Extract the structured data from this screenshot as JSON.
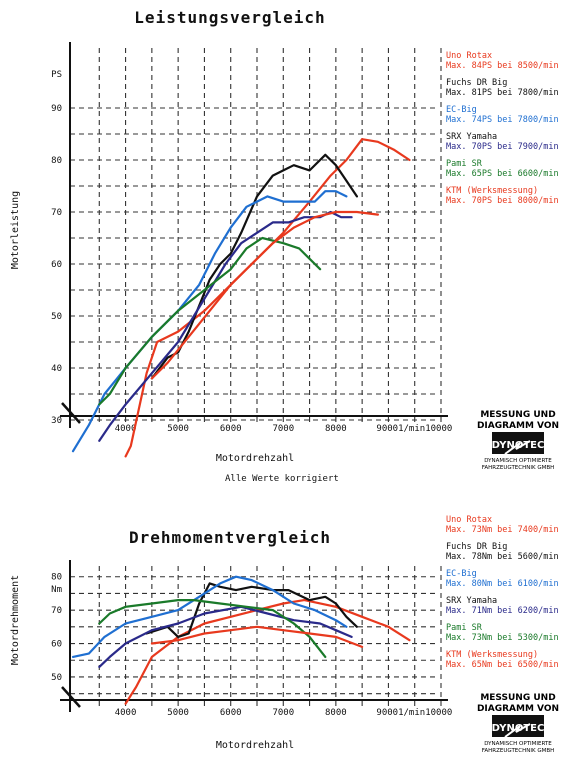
{
  "chart_data": [
    {
      "type": "line",
      "title": "Leistungsvergleich",
      "xlabel": "Motordrehzahl",
      "ylabel": "Motorleistung",
      "unit": "PS",
      "x_tick_labels": [
        "4000",
        "5000",
        "6000",
        "7000",
        "8000",
        "90001/min10000"
      ],
      "y_tick_labels": [
        "30",
        "40",
        "50",
        "60",
        "70",
        "80",
        "90"
      ],
      "xlim": [
        3000,
        10000
      ],
      "ylim": [
        20,
        92
      ],
      "grid": true,
      "note": "Alle Werte korrigiert",
      "legend_position": "right",
      "series": [
        {
          "name": "Uno Rotax",
          "max": "Max. 84PS bei 8500/min",
          "color": "#e8391e",
          "points": [
            [
              4000,
              23
            ],
            [
              4100,
              25
            ],
            [
              4250,
              32
            ],
            [
              4400,
              39
            ],
            [
              4600,
              45
            ],
            [
              5000,
              47
            ],
            [
              5500,
              51
            ],
            [
              6000,
              56
            ],
            [
              6500,
              61
            ],
            [
              7000,
              66
            ],
            [
              7500,
              72
            ],
            [
              7900,
              77
            ],
            [
              8200,
              80
            ],
            [
              8500,
              84
            ],
            [
              8800,
              83.5
            ],
            [
              9100,
              82
            ],
            [
              9400,
              80
            ]
          ]
        },
        {
          "name": "Fuchs DR Big",
          "max": "Max. 81PS bei 7800/min",
          "color": "#111111",
          "points": [
            [
              4500,
              38
            ],
            [
              4800,
              42
            ],
            [
              5000,
              43
            ],
            [
              5200,
              47
            ],
            [
              5400,
              52
            ],
            [
              5600,
              57
            ],
            [
              5800,
              60
            ],
            [
              6000,
              62
            ],
            [
              6200,
              66
            ],
            [
              6500,
              73
            ],
            [
              6800,
              77
            ],
            [
              7000,
              78
            ],
            [
              7200,
              79
            ],
            [
              7500,
              78
            ],
            [
              7800,
              81
            ],
            [
              8000,
              79
            ],
            [
              8200,
              76
            ],
            [
              8400,
              73
            ]
          ]
        },
        {
          "name": "EC-Big",
          "max": "Max. 74PS bei 7800/min",
          "color": "#1f6fd1",
          "points": [
            [
              3000,
              24
            ],
            [
              3300,
              29
            ],
            [
              3600,
              35
            ],
            [
              4000,
              40
            ],
            [
              4500,
              46
            ],
            [
              5000,
              51
            ],
            [
              5400,
              56
            ],
            [
              5700,
              62
            ],
            [
              6000,
              67
            ],
            [
              6300,
              71
            ],
            [
              6700,
              73
            ],
            [
              7000,
              72
            ],
            [
              7300,
              72
            ],
            [
              7600,
              72
            ],
            [
              7800,
              74
            ],
            [
              8000,
              74
            ],
            [
              8200,
              73
            ]
          ]
        },
        {
          "name": "SRX Yamaha",
          "max": "Max. 70PS bei 7900/min",
          "color": "#2a2a8a",
          "points": [
            [
              3500,
              26
            ],
            [
              3700,
              29
            ],
            [
              4000,
              33
            ],
            [
              4500,
              39
            ],
            [
              5000,
              45
            ],
            [
              5300,
              50
            ],
            [
              5600,
              55
            ],
            [
              5900,
              60
            ],
            [
              6200,
              64
            ],
            [
              6500,
              66
            ],
            [
              6800,
              68
            ],
            [
              7100,
              68
            ],
            [
              7400,
              69
            ],
            [
              7700,
              69
            ],
            [
              7900,
              70
            ],
            [
              8100,
              69
            ],
            [
              8300,
              69
            ]
          ]
        },
        {
          "name": "Pami SR",
          "max": "Max. 65PS bei 6600/min",
          "color": "#1a7a2a",
          "points": [
            [
              3500,
              33
            ],
            [
              3700,
              35
            ],
            [
              4000,
              40
            ],
            [
              4500,
              46
            ],
            [
              5000,
              51
            ],
            [
              5500,
              55
            ],
            [
              6000,
              59
            ],
            [
              6300,
              63
            ],
            [
              6600,
              65
            ],
            [
              7000,
              64
            ],
            [
              7300,
              63
            ],
            [
              7500,
              61
            ],
            [
              7700,
              59
            ]
          ]
        },
        {
          "name": "KTM (Werksmessung)",
          "max": "Max. 70PS bei 8000/min",
          "color": "#e8391e",
          "points": [
            [
              4500,
              38
            ],
            [
              4800,
              41
            ],
            [
              5200,
              46
            ],
            [
              5600,
              51
            ],
            [
              6000,
              56
            ],
            [
              6400,
              60
            ],
            [
              6800,
              64
            ],
            [
              7200,
              67
            ],
            [
              7600,
              69
            ],
            [
              8000,
              70
            ],
            [
              8400,
              70
            ],
            [
              8800,
              69.5
            ]
          ]
        }
      ]
    },
    {
      "type": "line",
      "title": "Drehmomentvergleich",
      "xlabel": "Motordrehzahl",
      "ylabel": "Motordrehmoment",
      "unit": "Nm",
      "x_tick_labels": [
        "4000",
        "5000",
        "6000",
        "7000",
        "8000",
        "90001/min10000"
      ],
      "y_tick_labels": [
        "50",
        "60",
        "70",
        "80"
      ],
      "xlim": [
        3000,
        10000
      ],
      "ylim": [
        41,
        83
      ],
      "grid": true,
      "legend_position": "right",
      "series": [
        {
          "name": "Uno Rotax",
          "max": "Max. 73Nm bei 7400/min",
          "color": "#e8391e",
          "points": [
            [
              4000,
              42
            ],
            [
              4200,
              47
            ],
            [
              4500,
              56
            ],
            [
              5000,
              62
            ],
            [
              5500,
              66
            ],
            [
              6000,
              68
            ],
            [
              6500,
              70
            ],
            [
              7000,
              72
            ],
            [
              7400,
              73
            ],
            [
              8000,
              71
            ],
            [
              8500,
              68
            ],
            [
              9000,
              65
            ],
            [
              9400,
              61
            ]
          ]
        },
        {
          "name": "Fuchs DR Big",
          "max": "Max. 78Nm bei 5600/min",
          "color": "#111111",
          "points": [
            [
              4400,
              63
            ],
            [
              4800,
              65
            ],
            [
              5000,
              62
            ],
            [
              5200,
              63
            ],
            [
              5400,
              72
            ],
            [
              5600,
              78
            ],
            [
              5800,
              77
            ],
            [
              6100,
              76
            ],
            [
              6400,
              77
            ],
            [
              6800,
              76
            ],
            [
              7100,
              76
            ],
            [
              7500,
              73
            ],
            [
              7800,
              74
            ],
            [
              8000,
              72
            ],
            [
              8200,
              68
            ],
            [
              8400,
              65
            ]
          ]
        },
        {
          "name": "EC-Big",
          "max": "Max. 80Nm bei 6100/min",
          "color": "#1f6fd1",
          "points": [
            [
              3000,
              56
            ],
            [
              3300,
              57
            ],
            [
              3600,
              62
            ],
            [
              4000,
              66
            ],
            [
              4500,
              68
            ],
            [
              5000,
              70
            ],
            [
              5400,
              74
            ],
            [
              5800,
              78
            ],
            [
              6100,
              80
            ],
            [
              6400,
              79
            ],
            [
              6800,
              76
            ],
            [
              7200,
              72
            ],
            [
              7600,
              70
            ],
            [
              8000,
              67
            ],
            [
              8200,
              65
            ]
          ]
        },
        {
          "name": "SRX Yamaha",
          "max": "Max. 71Nm bei 6200/min",
          "color": "#2a2a8a",
          "points": [
            [
              3500,
              53
            ],
            [
              3700,
              56
            ],
            [
              4000,
              60
            ],
            [
              4500,
              64
            ],
            [
              5000,
              66
            ],
            [
              5500,
              69
            ],
            [
              6200,
              71
            ],
            [
              6700,
              69
            ],
            [
              7200,
              67
            ],
            [
              7700,
              66
            ],
            [
              8000,
              64
            ],
            [
              8300,
              62
            ]
          ]
        },
        {
          "name": "Pami SR",
          "max": "Max. 73Nm bei 5300/min",
          "color": "#1a7a2a",
          "points": [
            [
              3500,
              66
            ],
            [
              3700,
              69
            ],
            [
              4000,
              71
            ],
            [
              4500,
              72
            ],
            [
              5000,
              73
            ],
            [
              5300,
              73
            ],
            [
              5800,
              72
            ],
            [
              6300,
              71
            ],
            [
              6800,
              70
            ],
            [
              7200,
              66
            ],
            [
              7500,
              62
            ],
            [
              7800,
              56
            ]
          ]
        },
        {
          "name": "KTM (Werksmessung)",
          "max": "Max. 65Nm bei 6500/min",
          "color": "#e8391e",
          "points": [
            [
              4500,
              60
            ],
            [
              5000,
              61
            ],
            [
              5500,
              63
            ],
            [
              6000,
              64
            ],
            [
              6500,
              65
            ],
            [
              7000,
              64
            ],
            [
              7500,
              63
            ],
            [
              8000,
              62
            ],
            [
              8500,
              59
            ]
          ]
        }
      ]
    }
  ],
  "branding": {
    "line1": "MESSUNG UND",
    "line2": "DIAGRAMM VON",
    "logo": "DYNOTEC",
    "sub1": "DYNAMISCH OPTIMIERTE",
    "sub2": "FAHRZEUGTECHNIK GMBH"
  },
  "colors": {
    "grid": "#333333",
    "axis": "#111111",
    "text": "#111111"
  }
}
